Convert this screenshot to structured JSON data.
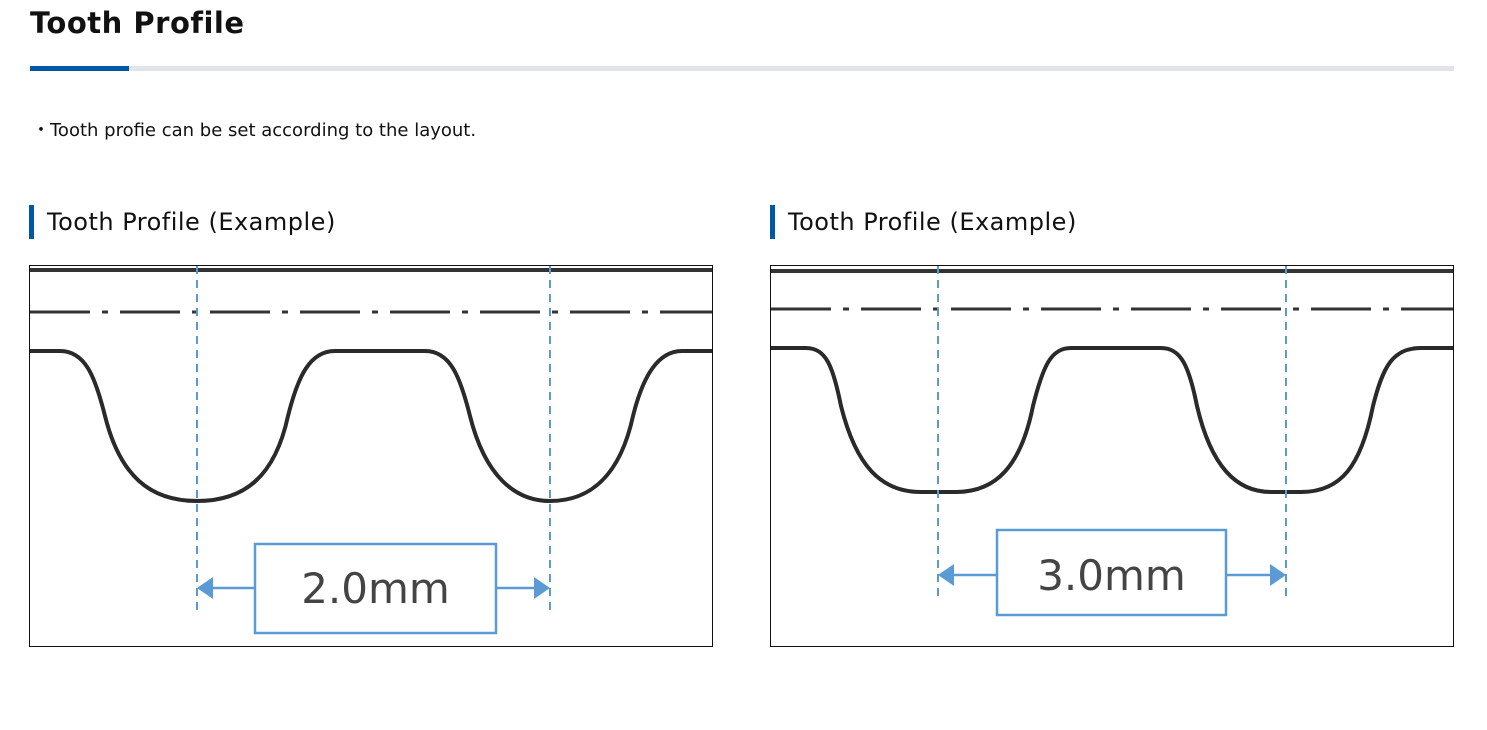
{
  "header": {
    "title": "Tooth Profile"
  },
  "note": "・Tooth profie can be set according to the layout.",
  "accent_color": "#0057a8",
  "dimension_color": "#5b9bd5",
  "examples": [
    {
      "heading": "Tooth Profile (Example)",
      "pitch_label": "2.0mm"
    },
    {
      "heading": "Tooth Profile (Example)",
      "pitch_label": "3.0mm"
    }
  ]
}
